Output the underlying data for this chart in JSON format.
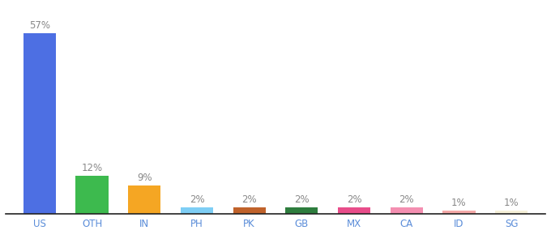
{
  "categories": [
    "US",
    "OTH",
    "IN",
    "PH",
    "PK",
    "GB",
    "MX",
    "CA",
    "ID",
    "SG"
  ],
  "values": [
    57,
    12,
    9,
    2,
    2,
    2,
    2,
    2,
    1,
    1
  ],
  "bar_colors": [
    "#4d6fe3",
    "#3dba4e",
    "#f5a623",
    "#7ecef5",
    "#c0622b",
    "#2e7d3e",
    "#e84d8a",
    "#f48fb1",
    "#f4a9a8",
    "#f5f0d8"
  ],
  "ylim": [
    0,
    62
  ],
  "label_color": "#888888",
  "label_fontsize": 8.5,
  "tick_fontsize": 8.5,
  "tick_color": "#5b8dd9",
  "background_color": "#ffffff",
  "bar_width": 0.62,
  "bottom_line_color": "#222222"
}
